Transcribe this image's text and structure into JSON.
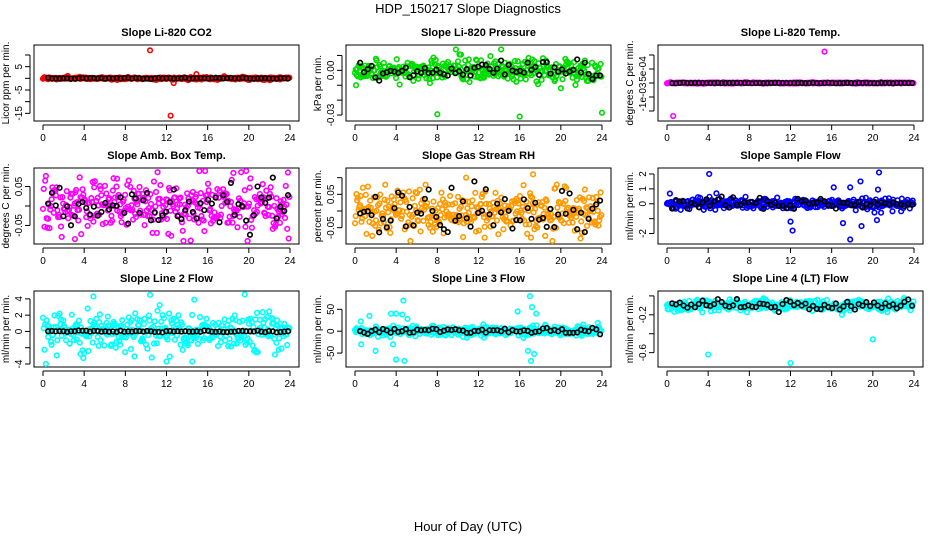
{
  "figure": {
    "title": "HDP_150217  Slope Diagnostics",
    "xlabel": "Hour of Day (UTC)"
  },
  "chart_data": [
    {
      "type": "scatter",
      "title": "Slope Li-820 CO2",
      "ylabel": "Licor ppm per min.",
      "xlim": [
        0,
        24
      ],
      "ylim": [
        -17,
        13
      ],
      "xticks": [
        0,
        4,
        8,
        12,
        16,
        20,
        24
      ],
      "yticks": [
        10,
        5,
        0,
        -5,
        -10,
        -15
      ],
      "ytick_labels": [
        "",
        "5",
        "",
        "-5",
        "",
        "-15"
      ],
      "color": "#ff0000",
      "center": 0,
      "spread": 0.25,
      "black_spread": 0.1,
      "outliers": [
        [
          10.4,
          12
        ],
        [
          12.4,
          -16
        ],
        [
          12.7,
          -2
        ],
        [
          14.9,
          1.8
        ],
        [
          2.4,
          1
        ],
        [
          17.6,
          0.9
        ],
        [
          14.1,
          -0.8
        ]
      ]
    },
    {
      "type": "scatter",
      "title": "Slope Li-820 Pressure",
      "ylabel": "kPa per min.",
      "xlim": [
        0,
        24
      ],
      "ylim": [
        -0.032,
        0.015
      ],
      "xticks": [
        0,
        4,
        8,
        12,
        16,
        20,
        24
      ],
      "yticks": [
        0.01,
        0,
        -0.01,
        -0.02,
        -0.03
      ],
      "ytick_labels": [
        "",
        "0.00",
        "",
        "",
        "-0.03"
      ],
      "color": "#00dd00",
      "center": 0,
      "spread": 0.004,
      "black_spread": 0.003,
      "outliers": [
        [
          8,
          -0.0295
        ],
        [
          16,
          -0.031
        ],
        [
          24,
          -0.0285
        ],
        [
          9.8,
          0.014
        ],
        [
          14.2,
          0.014
        ],
        [
          0.1,
          -0.01
        ],
        [
          20,
          -0.012
        ]
      ]
    },
    {
      "type": "scatter",
      "title": "Slope Li-820 Temp.",
      "ylabel": "degrees C per min.",
      "xlim": [
        0,
        24
      ],
      "ylim": [
        -0.00125,
        0.00125
      ],
      "xticks": [
        0,
        4,
        8,
        12,
        16,
        20,
        24
      ],
      "yticks": [
        0.001,
        0.0005,
        0,
        -0.0005,
        -0.001
      ],
      "ytick_labels": [
        "",
        "5e-04",
        "",
        "-1e-03",
        ""
      ],
      "color": "#ff00ff",
      "center": 0,
      "spread": 1e-05,
      "black_spread": 5e-06,
      "outliers": [
        [
          15.3,
          0.00112
        ],
        [
          0.6,
          -0.00118
        ]
      ]
    },
    {
      "type": "scatter",
      "title": "Slope Amb. Box Temp.",
      "ylabel": "degrees C per min.",
      "xlim": [
        0,
        24
      ],
      "ylim": [
        -0.09,
        0.09
      ],
      "xticks": [
        0,
        4,
        8,
        12,
        16,
        20,
        24
      ],
      "yticks": [
        0.05,
        0,
        -0.05
      ],
      "ytick_labels": [
        "0.05",
        "",
        "-0.05"
      ],
      "color": "#ff00ff",
      "center": 0,
      "spread": 0.035,
      "black_spread": 0.03,
      "outliers": [
        [
          18.5,
          0.085
        ],
        [
          3.1,
          -0.085
        ],
        [
          7.2,
          0.07
        ]
      ]
    },
    {
      "type": "scatter",
      "title": "Slope Gas Stream RH",
      "ylabel": "percent per min.",
      "xlim": [
        0,
        24
      ],
      "ylim": [
        -0.09,
        0.12
      ],
      "xticks": [
        0,
        4,
        8,
        12,
        16,
        20,
        24
      ],
      "yticks": [
        0.1,
        0.05,
        0,
        -0.05
      ],
      "ytick_labels": [
        "",
        "0.05",
        "",
        "-0.05"
      ],
      "color": "#ff9900",
      "center": 0,
      "spread": 0.035,
      "black_spread": 0.035,
      "outliers": [
        [
          17.3,
          0.11
        ],
        [
          10.8,
          0.1
        ],
        [
          17.1,
          -0.08
        ],
        [
          12.6,
          -0.08
        ]
      ]
    },
    {
      "type": "scatter",
      "title": "Slope Sample Flow",
      "ylabel": "ml/min per min.",
      "xlim": [
        0,
        24
      ],
      "ylim": [
        -2.5,
        2.2
      ],
      "xticks": [
        0,
        4,
        8,
        12,
        16,
        20,
        24
      ],
      "yticks": [
        2,
        1,
        0,
        -1,
        -2
      ],
      "ytick_labels": [
        "2",
        "1",
        "0",
        "",
        "-2"
      ],
      "color": "#0000ff",
      "center": 0,
      "spread": 0.18,
      "black_spread": 0.2,
      "outliers": [
        [
          4.1,
          2
        ],
        [
          20.6,
          2.1
        ],
        [
          17.8,
          -2.4
        ],
        [
          12.2,
          -1.8
        ],
        [
          18.9,
          -1.5
        ],
        [
          12,
          -1.2
        ],
        [
          17.1,
          -1.3
        ],
        [
          18.8,
          1.5
        ],
        [
          20.5,
          0.95
        ],
        [
          17.8,
          1.1
        ],
        [
          16.2,
          1.1
        ],
        [
          4.8,
          0.7
        ],
        [
          20.4,
          -1.1
        ],
        [
          20.8,
          -0.6
        ]
      ]
    },
    {
      "type": "scatter",
      "title": "Slope Line 2 Flow",
      "ylabel": "ml/min per min.",
      "xlim": [
        0,
        24
      ],
      "ylim": [
        -4,
        4.6
      ],
      "xticks": [
        0,
        4,
        8,
        12,
        16,
        20,
        24
      ],
      "yticks": [
        4,
        2,
        0,
        -2,
        -4
      ],
      "ytick_labels": [
        "4",
        "2",
        "0",
        "",
        "-4"
      ],
      "color": "#00ffff",
      "center": 0,
      "spread": 1.2,
      "black_spread": 0.05,
      "outliers": [
        [
          10.4,
          4.5
        ],
        [
          4.9,
          4.3
        ],
        [
          12,
          -3.7
        ],
        [
          14.5,
          -3.7
        ],
        [
          14.7,
          3.9
        ]
      ]
    },
    {
      "type": "scatter",
      "title": "Slope Line 3 Flow",
      "ylabel": "ml/min per min.",
      "xlim": [
        0,
        24
      ],
      "ylim": [
        -75,
        85
      ],
      "xticks": [
        0,
        4,
        8,
        12,
        16,
        20,
        24
      ],
      "yticks": [
        50,
        0,
        -50
      ],
      "ytick_labels": [
        "50",
        "0",
        "-50"
      ],
      "color": "#00ffff",
      "center": 0,
      "spread": 6,
      "black_spread": 4,
      "outliers": [
        [
          17,
          80
        ],
        [
          4.7,
          70
        ],
        [
          4,
          -65
        ],
        [
          4.8,
          -68
        ],
        [
          17.1,
          -68
        ],
        [
          1.4,
          35
        ],
        [
          3.5,
          40
        ],
        [
          4,
          40
        ],
        [
          4.6,
          38
        ],
        [
          5.1,
          28
        ],
        [
          15.8,
          45
        ],
        [
          17.2,
          55
        ],
        [
          17.6,
          40
        ],
        [
          2,
          -45
        ],
        [
          0.6,
          -30
        ],
        [
          3.7,
          -30
        ],
        [
          16.8,
          -45
        ],
        [
          17.4,
          -52
        ]
      ]
    },
    {
      "type": "scatter",
      "title": "Slope Line 4 (LT) Flow",
      "ylabel": "ml/min per min.",
      "xlim": [
        0,
        24
      ],
      "ylim": [
        -0.72,
        0.02
      ],
      "xticks": [
        0,
        4,
        8,
        12,
        16,
        20,
        24
      ],
      "yticks": [
        0,
        -0.2,
        -0.4,
        -0.6
      ],
      "ytick_labels": [
        "",
        "-0.2",
        "",
        "-0.6"
      ],
      "color": "#00ffff",
      "center": -0.1,
      "spread": 0.03,
      "black_spread": 0.03,
      "outliers": [
        [
          4,
          -0.62
        ],
        [
          12,
          -0.71
        ],
        [
          20,
          -0.46
        ],
        [
          17,
          -0.2
        ]
      ]
    }
  ]
}
